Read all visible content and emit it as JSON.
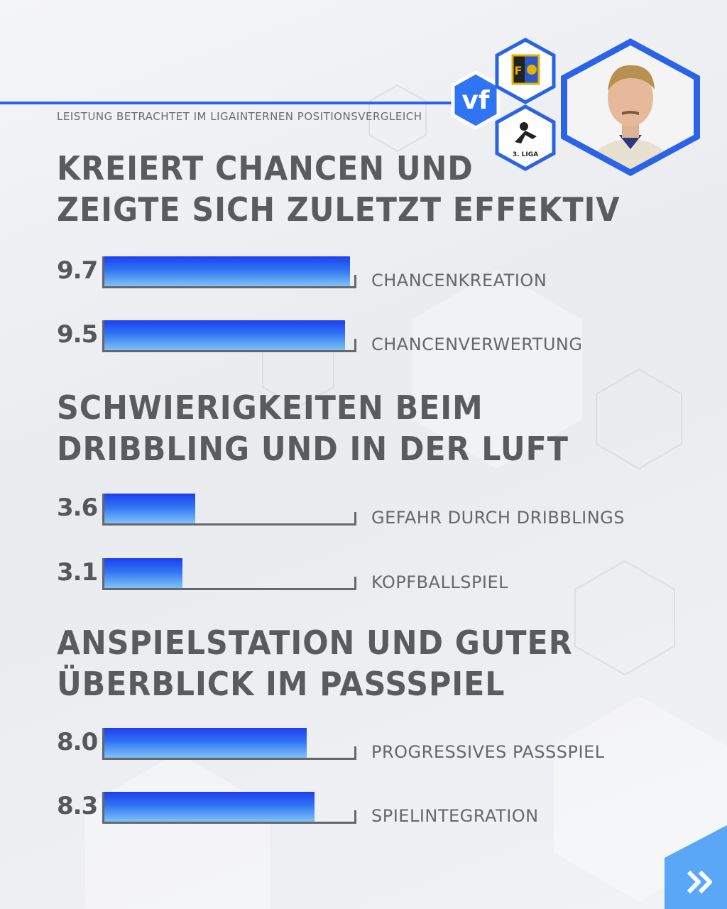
{
  "subtitle": "LEISTUNG BETRACHTET IM LIGAINTERNEN POSITIONSVERGLEICH",
  "brand": {
    "logo_text": "vf",
    "league_label": "3. LIGA"
  },
  "colors": {
    "accent": "#2a63e6",
    "bar_top": "#1e3ef0",
    "bar_bottom": "#7fc2f8",
    "text": "#58595c"
  },
  "sections": [
    {
      "heading_line1": "KREIERT CHANCEN UND",
      "heading_line2": "ZEIGTE SICH ZULETZT EFFEKTIV"
    },
    {
      "heading_line1": "SCHWIERIGKEITEN BEIM",
      "heading_line2": "DRIBBLING UND IN DER LUFT"
    },
    {
      "heading_line1": "ANSPIELSTATION UND GUTER",
      "heading_line2": "ÜBERBLICK IM PASSSPIEL"
    }
  ],
  "chart_data": {
    "type": "bar",
    "orientation": "horizontal",
    "xlim": [
      0,
      10
    ],
    "categories": [
      "CHANCENKREATION",
      "CHANCENVERWERTUNG",
      "GEFAHR DURCH DRIBBLINGS",
      "KOPFBALLSPIEL",
      "PROGRESSIVES PASSSPIEL",
      "SPIELINTEGRATION"
    ],
    "values": [
      9.7,
      9.5,
      3.6,
      3.1,
      8.0,
      8.3
    ],
    "value_labels": [
      "9.7",
      "9.5",
      "3.6",
      "3.1",
      "8.0",
      "8.3"
    ]
  },
  "icons": {
    "next": "double-chevron-right-icon",
    "club_crest": "club-crest-icon",
    "player": "player-portrait-icon",
    "league": "league-logo-icon"
  }
}
